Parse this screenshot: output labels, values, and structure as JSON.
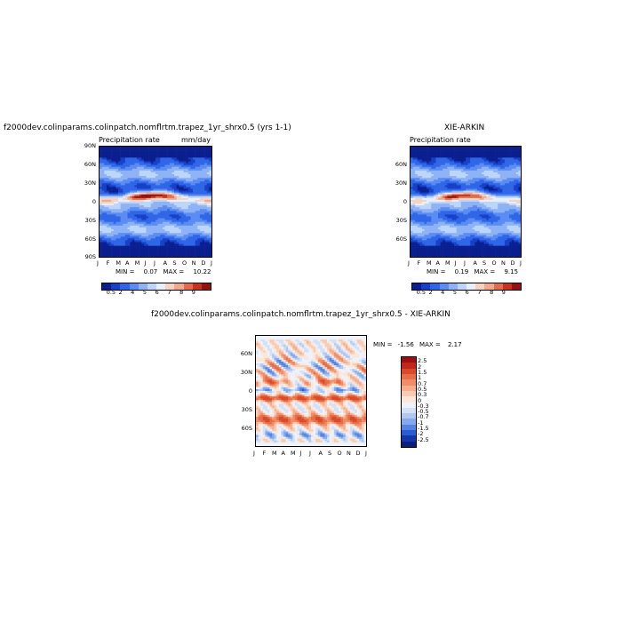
{
  "figure": {
    "p1_title": "f2000dev.colinparams.colinpatch.nomflrtm.trapez_1yr_shrx0.5 (yrs 1-1)",
    "p2_title": "XIE-ARKIN",
    "p3_title": "f2000dev.colinparams.colinpatch.nomflrtm.trapez_1yr_shrx0.5 - XIE-ARKIN"
  },
  "chart_data": [
    {
      "type": "heatmap",
      "variable": "Precipitation rate",
      "units": "mm/day",
      "x_tick_labels": [
        "J",
        "F",
        "M",
        "A",
        "M",
        "J",
        "J",
        "A",
        "S",
        "O",
        "N",
        "D",
        "J"
      ],
      "y_tick_labels": [
        "90N",
        "60N",
        "30N",
        "0",
        "30S",
        "60S",
        "90S"
      ],
      "y_range": [
        -90,
        90
      ],
      "stats": {
        "min_label": "MIN =",
        "min": "0.07",
        "max_label": "MAX =",
        "max": "10.22"
      },
      "colorbar_labels": [
        "0.5",
        "2",
        "4",
        "5",
        "6",
        "7",
        "8",
        "9"
      ],
      "colorbar_colors": [
        "#0a1f8f",
        "#1740c8",
        "#2f66e8",
        "#5a8cf2",
        "#8db2f6",
        "#bcd6fb",
        "#e9eefb",
        "#f6d3c0",
        "#f1a98c",
        "#e26d4e",
        "#c8331f",
        "#951212"
      ],
      "highlights": "ITCZ maximum near 5-10N peaking June-September"
    },
    {
      "type": "heatmap",
      "variable": "Precipitation rate",
      "units": "",
      "x_tick_labels": [
        "J",
        "F",
        "M",
        "A",
        "M",
        "J",
        "J",
        "A",
        "S",
        "O",
        "N",
        "D",
        "J"
      ],
      "y_tick_labels": [
        "60N",
        "30N",
        "0",
        "30S",
        "60S"
      ],
      "y_range": [
        -90,
        90
      ],
      "stats": {
        "min_label": "MIN =",
        "min": "0.19",
        "max_label": "MAX =",
        "max": "9.15"
      },
      "colorbar_labels": [
        "0.5",
        "2",
        "4",
        "5",
        "6",
        "7",
        "8",
        "9"
      ],
      "colorbar_colors": [
        "#0a1f8f",
        "#1740c8",
        "#2f66e8",
        "#5a8cf2",
        "#8db2f6",
        "#bcd6fb",
        "#e9eefb",
        "#f6d3c0",
        "#f1a98c",
        "#e26d4e",
        "#c8331f",
        "#951212"
      ],
      "highlights": "ITCZ maximum near 5-10N peaking July-October"
    },
    {
      "type": "heatmap",
      "variable": "",
      "units": "",
      "x_tick_labels": [
        "J",
        "F",
        "M",
        "A",
        "M",
        "J",
        "J",
        "A",
        "S",
        "O",
        "N",
        "D",
        "J"
      ],
      "y_tick_labels": [
        "60N",
        "30N",
        "0",
        "30S",
        "60S"
      ],
      "y_range": [
        -90,
        90
      ],
      "stats": {
        "min_label": "MIN =",
        "min": "-1.56",
        "max_label": "MAX =",
        "max": "2.17"
      },
      "colorbar_labels": [
        "2.5",
        "2",
        "1.5",
        "1",
        "0.7",
        "0.5",
        "0.3",
        "0",
        "-0.3",
        "-0.5",
        "-0.7",
        "-1",
        "-1.5",
        "-2",
        "-2.5"
      ],
      "colorbar_colors": [
        "#9b1111",
        "#c0281a",
        "#d94a2c",
        "#e86c45",
        "#f08d68",
        "#f5ad8d",
        "#f8ccb3",
        "#fbe7d9",
        "#eef2fb",
        "#d3e1f7",
        "#aec8f2",
        "#84a9ec",
        "#5585e0",
        "#2c5cd1",
        "#1536a8",
        "#0a1e7d"
      ]
    }
  ]
}
